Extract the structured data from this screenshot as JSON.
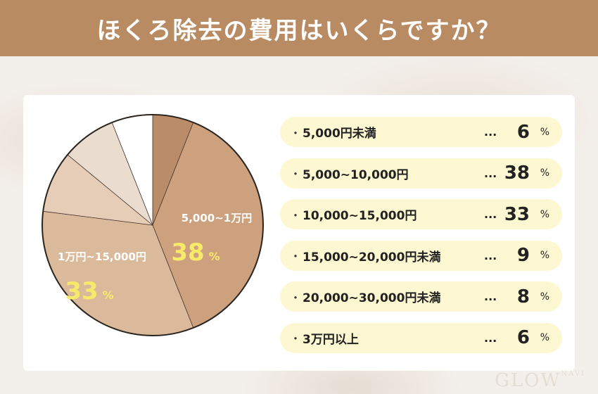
{
  "header": {
    "title": "ほくろ除去の費用はいくらですか？"
  },
  "chart_data": {
    "type": "pie",
    "slices": [
      {
        "label": "5,000円未満",
        "value": 6,
        "color": "#bb8c68"
      },
      {
        "label": "5,000~10,000円",
        "value": 38,
        "color": "#cda07e",
        "chart_label": "5,000~1万円"
      },
      {
        "label": "10,000~15,000円",
        "value": 33,
        "color": "#dbb99b",
        "chart_label": "1万円~15,000円"
      },
      {
        "label": "15,000~20,000円未満",
        "value": 9,
        "color": "#e5cdb8"
      },
      {
        "label": "20,000~30,000円未満",
        "value": 8,
        "color": "#ebdcd0"
      },
      {
        "label": "3万円以上",
        "value": 6,
        "color": "#ffffff"
      }
    ],
    "unit": "%"
  },
  "legend": {
    "bullet": "・",
    "dots": "...",
    "unit": "%"
  },
  "logo": {
    "text": "GLOW",
    "sub": "NAVI"
  }
}
